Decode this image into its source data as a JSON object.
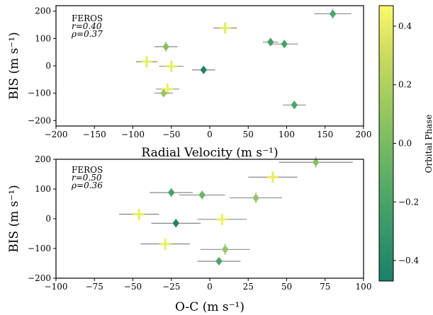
{
  "chart_data": [
    {
      "type": "scatter",
      "xlabel": "Radial Velocity (m s⁻¹)",
      "ylabel": "BIS (m s⁻¹)",
      "xlim": [
        -200,
        200
      ],
      "ylim": [
        -220,
        220
      ],
      "xticks": [
        "−200",
        "−150",
        "−100",
        "−50",
        "0",
        "50",
        "100",
        "150",
        "200"
      ],
      "yticks": [
        "200",
        "100",
        "0",
        "−100",
        "−200"
      ],
      "annotation": {
        "line1": "FEROS",
        "line2": "r=0.40",
        "line3": "ρ=0.37"
      },
      "points": [
        {
          "x": 160,
          "y": 190,
          "xerr": 24,
          "yerr": 18,
          "phase": -0.2,
          "marker": "diamond"
        },
        {
          "x": 20,
          "y": 138,
          "xerr": 15,
          "yerr": 18,
          "phase": 0.4,
          "marker": "plus"
        },
        {
          "x": 79,
          "y": 87,
          "xerr": 10,
          "yerr": 15,
          "phase": -0.22,
          "marker": "diamond"
        },
        {
          "x": 97,
          "y": 80,
          "xerr": 18,
          "yerr": 15,
          "phase": -0.22,
          "marker": "diamond"
        },
        {
          "x": -57,
          "y": 70,
          "xerr": 15,
          "yerr": 18,
          "phase": 0.05,
          "marker": "diamond"
        },
        {
          "x": -82,
          "y": 15,
          "xerr": 14,
          "yerr": 18,
          "phase": 0.4,
          "marker": "plus"
        },
        {
          "x": -50,
          "y": -2,
          "xerr": 16,
          "yerr": 15,
          "phase": 0.4,
          "marker": "plus"
        },
        {
          "x": -8,
          "y": -15,
          "xerr": 15,
          "yerr": 15,
          "phase": -0.45,
          "marker": "diamond"
        },
        {
          "x": -55,
          "y": -85,
          "xerr": 15,
          "yerr": 15,
          "phase": 0.42,
          "marker": "plus"
        },
        {
          "x": -60,
          "y": -100,
          "xerr": 12,
          "yerr": 15,
          "phase": 0.1,
          "marker": "diamond"
        },
        {
          "x": 110,
          "y": -143,
          "xerr": 15,
          "yerr": 12,
          "phase": -0.2,
          "marker": "diamond"
        }
      ]
    },
    {
      "type": "scatter",
      "xlabel": "O-C (m s⁻¹)",
      "ylabel": "BIS (m s⁻¹)",
      "xlim": [
        -100,
        100
      ],
      "ylim": [
        -200,
        200
      ],
      "xticks": [
        "−100",
        "−75",
        "−50",
        "−25",
        "0",
        "25",
        "50",
        "75",
        "100"
      ],
      "yticks": [
        "200",
        "100",
        "0",
        "−100",
        "−200"
      ],
      "annotation": {
        "line1": "FEROS",
        "line2": "r=0.50",
        "line3": "ρ=0.36"
      },
      "points": [
        {
          "x": 69,
          "y": 190,
          "xerr": 24,
          "yerr": 18,
          "phase": 0.05,
          "marker": "diamond"
        },
        {
          "x": 41,
          "y": 140,
          "xerr": 16,
          "yerr": 18,
          "phase": 0.4,
          "marker": "plus"
        },
        {
          "x": -25,
          "y": 88,
          "xerr": 14,
          "yerr": 15,
          "phase": -0.22,
          "marker": "diamond"
        },
        {
          "x": -5,
          "y": 80,
          "xerr": 15,
          "yerr": 15,
          "phase": -0.05,
          "marker": "diamond"
        },
        {
          "x": 30,
          "y": 70,
          "xerr": 17,
          "yerr": 18,
          "phase": 0.1,
          "marker": "diamond"
        },
        {
          "x": -46,
          "y": 15,
          "xerr": 13,
          "yerr": 18,
          "phase": 0.4,
          "marker": "plus"
        },
        {
          "x": 8,
          "y": -2,
          "xerr": 16,
          "yerr": 18,
          "phase": 0.42,
          "marker": "plus"
        },
        {
          "x": -22,
          "y": -15,
          "xerr": 16,
          "yerr": 15,
          "phase": -0.45,
          "marker": "diamond"
        },
        {
          "x": -29,
          "y": -85,
          "xerr": 16,
          "yerr": 15,
          "phase": 0.42,
          "marker": "plus"
        },
        {
          "x": 10,
          "y": -103,
          "xerr": 16,
          "yerr": 18,
          "phase": 0.1,
          "marker": "diamond"
        },
        {
          "x": 6,
          "y": -143,
          "xerr": 14,
          "yerr": 12,
          "phase": -0.2,
          "marker": "diamond"
        }
      ]
    }
  ],
  "colorbar": {
    "label": "Orbital Phase",
    "min": -0.47,
    "max": 0.47,
    "ticks": [
      {
        "value": 0.4,
        "label": "0.4"
      },
      {
        "value": 0.2,
        "label": "0.2"
      },
      {
        "value": 0.0,
        "label": "0.0"
      },
      {
        "value": -0.2,
        "label": "−0.2"
      },
      {
        "value": -0.4,
        "label": "−0.4"
      }
    ],
    "colormap": [
      "#1a8068",
      "#34966a",
      "#54a967",
      "#79bb63",
      "#a3cc5f",
      "#cfdc5f",
      "#fbfa6a"
    ]
  }
}
